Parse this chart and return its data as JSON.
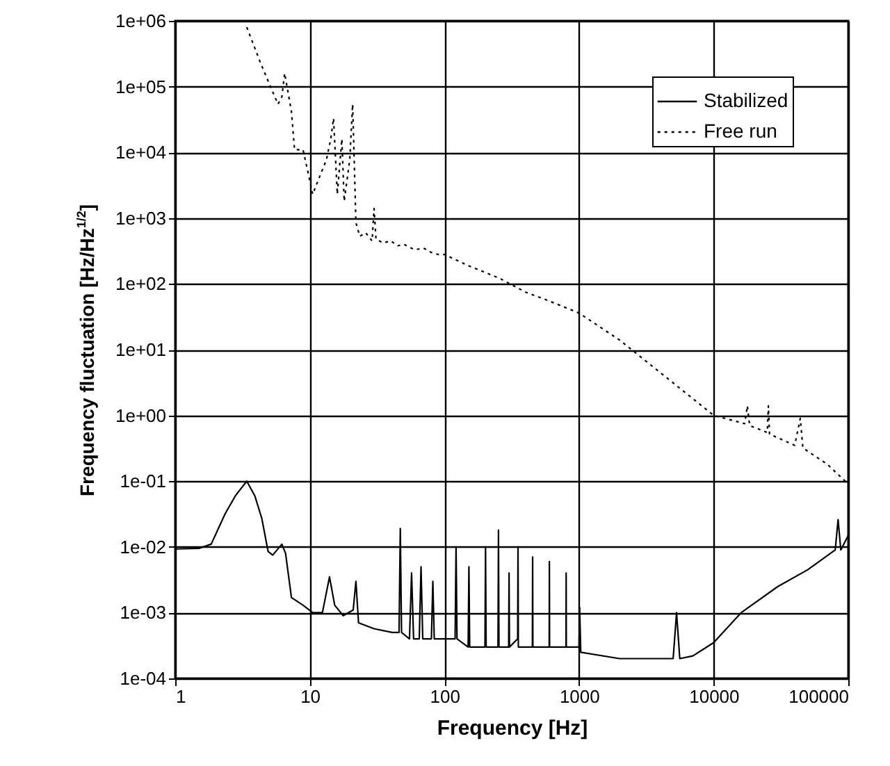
{
  "chart_data": {
    "type": "line",
    "xlabel": "Frequency [Hz]",
    "ylabel": "Frequency fluctuation [Hz/Hz$^{1/2}$]",
    "log": "xy",
    "grid": true,
    "legend": "top right",
    "xlim": [
      1,
      100000
    ],
    "xticks": [
      1,
      10,
      100,
      1000,
      10000,
      100000
    ],
    "ylim": [
      0.0001,
      1000000
    ],
    "yticks": [
      {
        "value": 1000000,
        "label": "1e+06"
      },
      {
        "value": 100000,
        "label": "1e+05"
      },
      {
        "value": 10000,
        "label": "1e+04"
      },
      {
        "value": 1000,
        "label": "1e+03"
      },
      {
        "value": 100,
        "label": "1e+02"
      },
      {
        "value": 10,
        "label": "1e+01"
      },
      {
        "value": 1,
        "label": "1e+00"
      },
      {
        "value": 0.1,
        "label": "1e-01"
      },
      {
        "value": 0.01,
        "label": "1e-02"
      },
      {
        "value": 0.001,
        "label": "1e-03"
      },
      {
        "value": 0.0001,
        "label": "1e-04"
      }
    ],
    "series": [
      {
        "name": "Stabilized",
        "color": "#000000",
        "line_style": "solid",
        "x": [
          1,
          1.5,
          1.85,
          2.35,
          2.8,
          3.4,
          3.9,
          4.4,
          4.9,
          5.3,
          6.2,
          6.6,
          7.3,
          8.9,
          10.5,
          12.4,
          14,
          15.3,
          17.7,
          21,
          22,
          23,
          30,
          41,
          46,
          47,
          48,
          55,
          57,
          59,
          65,
          67,
          69,
          80,
          82,
          84,
          100,
          120,
          122,
          124,
          150,
          152,
          154,
          200,
          202,
          204,
          250,
          252,
          254,
          300,
          302,
          304,
          350,
          352,
          354,
          450,
          452,
          454,
          600,
          602,
          604,
          800,
          802,
          804,
          1000,
          1010,
          1030,
          2000,
          3000,
          5000,
          5300,
          5600,
          7000,
          10000,
          16000,
          30000,
          50000,
          80000,
          84000,
          88000,
          100000
        ],
        "values": [
          0.0093,
          0.0095,
          0.011,
          0.032,
          0.06,
          0.1,
          0.06,
          0.027,
          0.0085,
          0.0075,
          0.011,
          0.008,
          0.0017,
          0.0013,
          0.001,
          0.001,
          0.0035,
          0.0013,
          0.0009,
          0.0011,
          0.003,
          0.0007,
          0.00057,
          0.0005,
          0.0005,
          0.019,
          0.0005,
          0.0004,
          0.004,
          0.0004,
          0.0004,
          0.005,
          0.0004,
          0.0004,
          0.003,
          0.0004,
          0.0004,
          0.0004,
          0.01,
          0.0004,
          0.0003,
          0.005,
          0.0003,
          0.0003,
          0.01,
          0.0003,
          0.0003,
          0.018,
          0.0003,
          0.0003,
          0.004,
          0.0003,
          0.0004,
          0.01,
          0.0003,
          0.0003,
          0.007,
          0.0003,
          0.0003,
          0.006,
          0.0003,
          0.0003,
          0.004,
          0.0003,
          0.0003,
          0.0012,
          0.00025,
          0.0002,
          0.0002,
          0.0002,
          0.001,
          0.0002,
          0.00022,
          0.00035,
          0.001,
          0.0025,
          0.0045,
          0.009,
          0.026,
          0.009,
          0.015
        ]
      },
      {
        "name": "Free run",
        "color": "#000000",
        "line_style": "dotted",
        "x": [
          3.4,
          4.3,
          5.1,
          5.8,
          6.2,
          6.5,
          7.3,
          7.7,
          8.9,
          9.5,
          10.5,
          11.5,
          13.3,
          14.3,
          15,
          16,
          17.3,
          18,
          19.8,
          20.8,
          22,
          23.5,
          26,
          29,
          30,
          31,
          35,
          40,
          45,
          50,
          60,
          70,
          80,
          90,
          100,
          150,
          200,
          260,
          400,
          600,
          1000,
          2000,
          4000,
          7000,
          10000,
          17000,
          17800,
          18500,
          25000,
          25500,
          26000,
          40000,
          44000,
          46000,
          70000,
          100000
        ],
        "values": [
          800000,
          230000,
          100000,
          54000,
          70000,
          160000,
          42000,
          11000,
          11000,
          6000,
          2300,
          3700,
          7800,
          16000,
          33000,
          2300,
          16000,
          1800,
          7800,
          54000,
          850,
          530,
          600,
          450,
          1400,
          480,
          420,
          450,
          380,
          400,
          330,
          350,
          300,
          280,
          280,
          190,
          150,
          120,
          75,
          55,
          36,
          14,
          4.5,
          1.8,
          1.0,
          0.75,
          1.4,
          0.7,
          0.55,
          1.4,
          0.52,
          0.35,
          0.9,
          0.32,
          0.18,
          0.09
        ]
      }
    ]
  }
}
